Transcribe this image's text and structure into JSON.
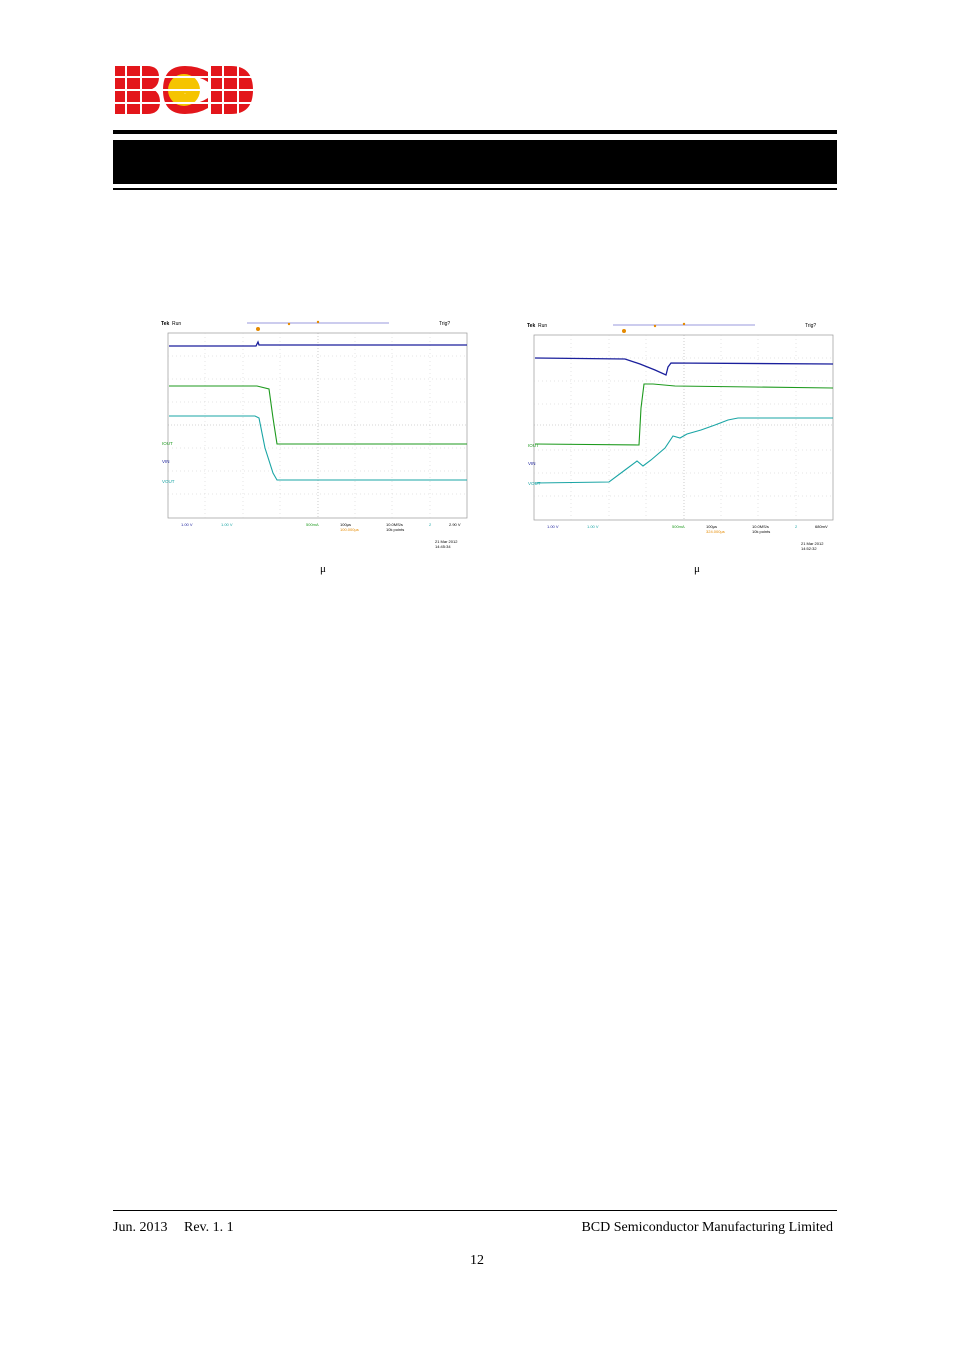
{
  "header": {
    "logo_text": "BCD",
    "title": ""
  },
  "figures": [
    {
      "scope_brand": "Tek",
      "scope_status": "Run",
      "trigger_status": "Trig?",
      "labels": {
        "iout": "IOUT",
        "vin": "VIN",
        "vout": "VOUT"
      },
      "ch1_scale": "1.00 V",
      "ch2_scale": "1.00 V",
      "ch4_scale": "500mA",
      "timebase": "100µs",
      "delay": "100.000µs",
      "sample_rate": "10.0MS/s",
      "record_length": "10k points",
      "trigger_channel": "2",
      "trigger_level": "2.90 V",
      "date": "21 Mar 2012",
      "time": "14:45:34",
      "caption": "μ"
    },
    {
      "scope_brand": "Tek",
      "scope_status": "Run",
      "trigger_status": "Trig?",
      "labels": {
        "iout": "IOUT",
        "vin": "VIN",
        "vout": "VOUT"
      },
      "ch1_scale": "1.00 V",
      "ch2_scale": "1.00 V",
      "ch4_scale": "500mA",
      "timebase": "100µs",
      "delay": "324.000µs",
      "sample_rate": "10.0MS/s",
      "record_length": "10k points",
      "trigger_channel": "2",
      "trigger_level": "680mV",
      "date": "21 Mar 2012",
      "time": "14:52:32",
      "caption": "μ"
    }
  ],
  "footer": {
    "date": "Jun. 2013",
    "revision": "Rev. 1. 1",
    "company": "BCD Semiconductor Manufacturing Limited",
    "page_number": "12"
  },
  "colors": {
    "logo_red": "#e3161b",
    "logo_yellow": "#f5c400",
    "vin_trace": "#1a1f9c",
    "iout_trace": "#1e9a1e",
    "vout_trace": "#1aa5a5",
    "timing_orange": "#e58a00"
  }
}
